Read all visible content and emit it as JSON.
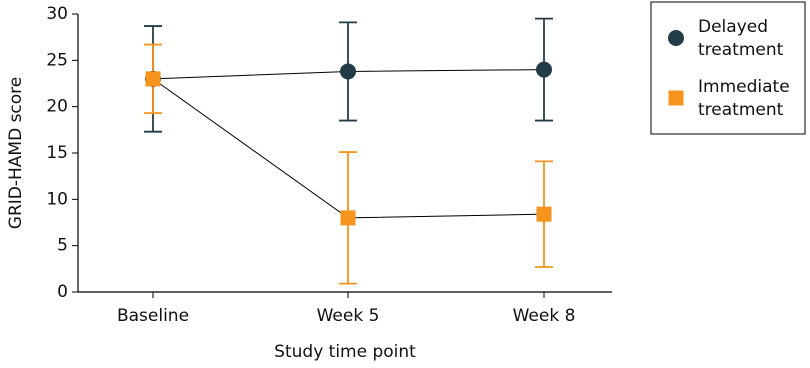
{
  "chart_data": {
    "type": "line",
    "x_label": "Study time point",
    "y_label": "GRID-HAMD score",
    "categories": [
      "Baseline",
      "Week 5",
      "Week 8"
    ],
    "series": [
      {
        "name": "Delayed treatment",
        "color": "#233c47",
        "marker": "circle",
        "values": [
          23.0,
          23.8,
          24.0
        ],
        "errors": [
          5.7,
          5.3,
          5.5
        ]
      },
      {
        "name": "Immediate treatment",
        "color": "#f7941d",
        "marker": "square",
        "values": [
          23.0,
          8.0,
          8.4
        ],
        "errors": [
          3.7,
          7.1,
          5.7
        ]
      }
    ],
    "ylim": [
      0,
      30
    ],
    "yticks": [
      0,
      5,
      10,
      15,
      20,
      25,
      30
    ],
    "grid": false,
    "legend": "right"
  }
}
